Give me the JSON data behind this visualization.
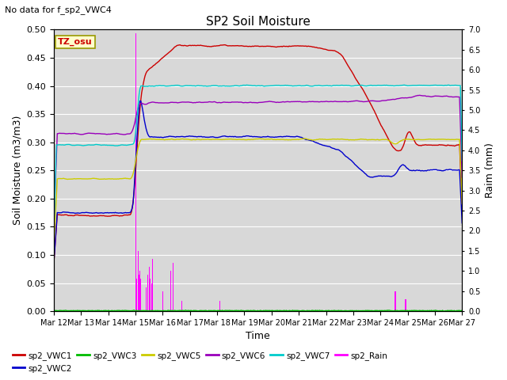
{
  "title": "SP2 Soil Moisture",
  "subtitle": "No data for f_sp2_VWC4",
  "xlabel": "Time",
  "ylabel_left": "Soil Moisture (m3/m3)",
  "ylabel_right": "Raim (mm)",
  "tz_label": "TZ_osu",
  "ylim_left": [
    0.0,
    0.5
  ],
  "ylim_right": [
    0.0,
    7.0
  ],
  "bg_color": "#d8d8d8",
  "xtick_labels": [
    "Mar 12",
    "Mar 13",
    "Mar 14",
    "Mar 15",
    "Mar 16",
    "Mar 17",
    "Mar 18",
    "Mar 19",
    "Mar 20",
    "Mar 21",
    "Mar 22",
    "Mar 23",
    "Mar 24",
    "Mar 25",
    "Mar 26",
    "Mar 27"
  ],
  "yticks_left": [
    0.0,
    0.05,
    0.1,
    0.15,
    0.2,
    0.25,
    0.3,
    0.35,
    0.4,
    0.45,
    0.5
  ],
  "yticks_right": [
    0.0,
    0.5,
    1.0,
    1.5,
    2.0,
    2.5,
    3.0,
    3.5,
    4.0,
    4.5,
    5.0,
    5.5,
    6.0,
    6.5,
    7.0
  ],
  "colors": {
    "vwc1": "#cc0000",
    "vwc2": "#0000cc",
    "vwc3": "#00bb00",
    "vwc5": "#cccc00",
    "vwc6": "#9900bb",
    "vwc7": "#00cccc",
    "rain": "#ff00ff"
  },
  "N": 480,
  "days": 15,
  "rain_scale": 0.07142857
}
